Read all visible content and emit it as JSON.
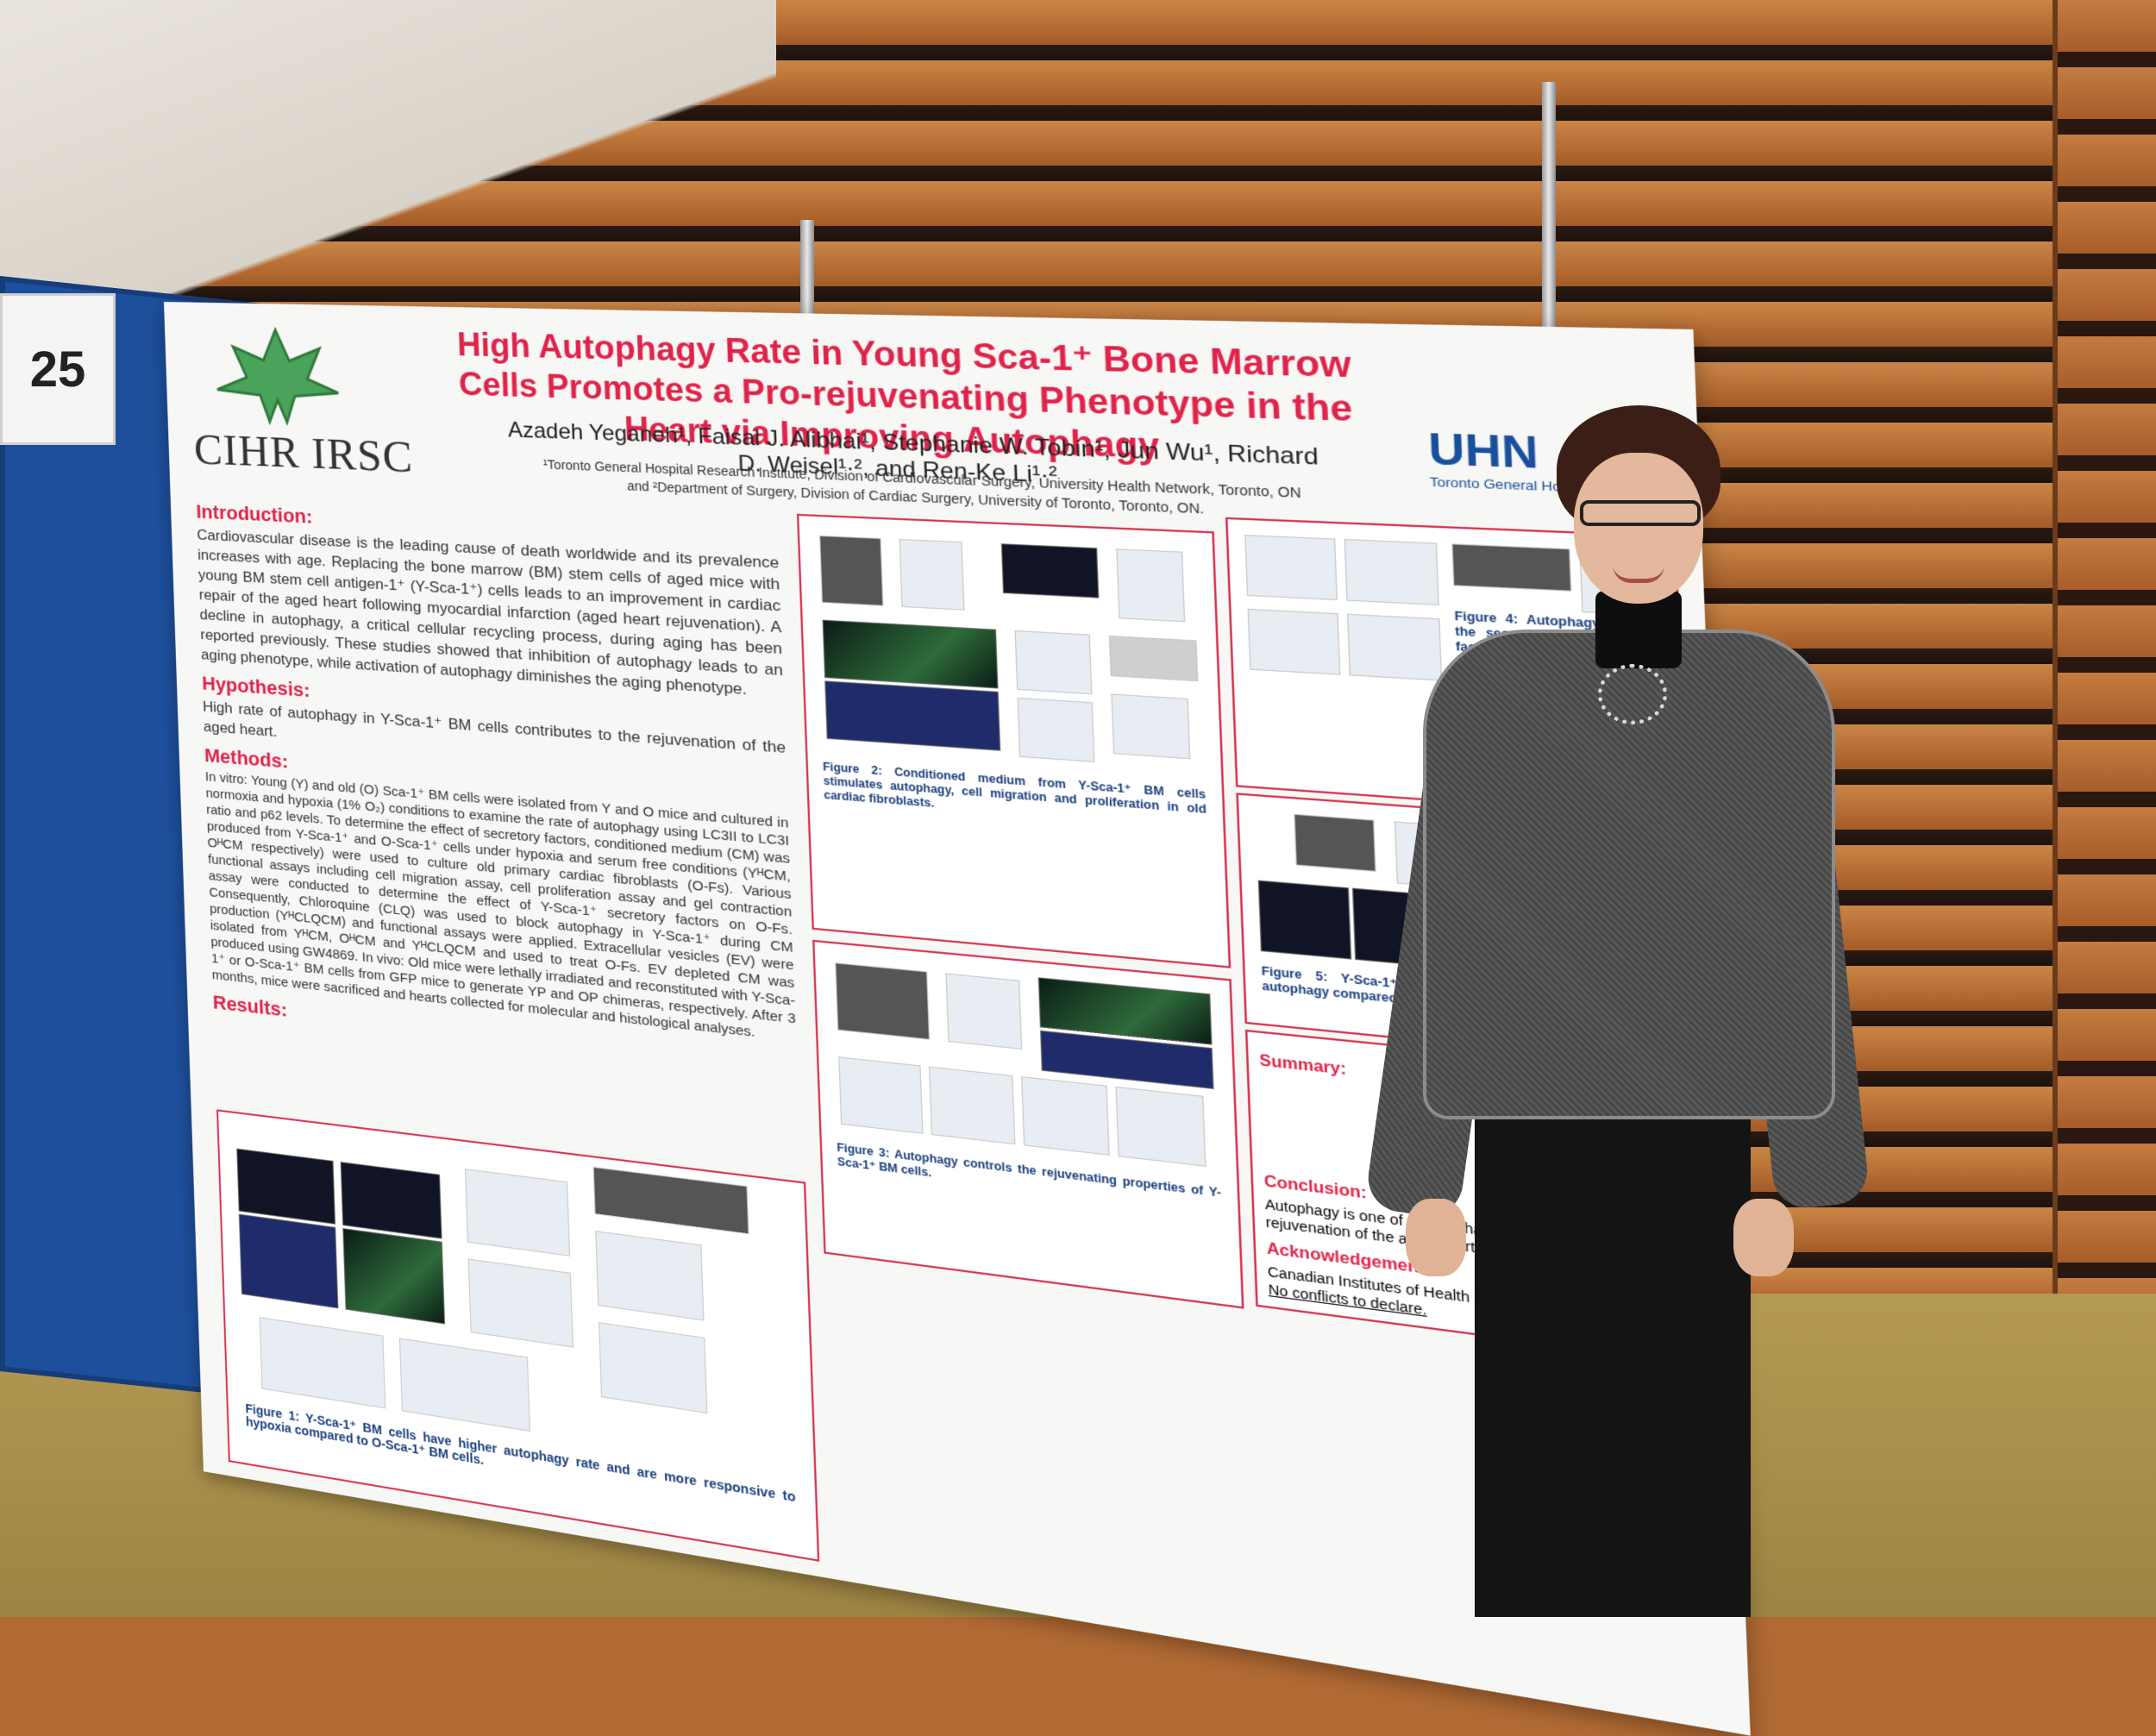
{
  "board": {
    "number": "25"
  },
  "poster": {
    "title": "High Autophagy Rate in Young Sca-1⁺ Bone Marrow Cells Promotes a Pro-rejuvenating Phenotype in the Heart via Improving Autophagy",
    "authors": "Azadeh Yeganeh¹, Faisal J. Alibhai¹, Stephanie W. Tobin¹, Jun Wu¹, Richard D. Weisel¹·², and Ren-Ke Li¹·²",
    "affiliation": "¹Toronto General Hospital Research Institute, Division of Cardiovascular Surgery, University Health Network, Toronto, ON and ²Department of Surgery, Division of Cardiac Surgery, University of Toronto, Toronto, ON.",
    "logos": {
      "left": "CIHR IRSC",
      "right": "UHN",
      "right_sub": "Toronto General Hospital"
    },
    "sections": {
      "introduction": {
        "heading": "Introduction:",
        "body": "Cardiovascular disease is the leading cause of death worldwide and its prevalence increases with age. Replacing the bone marrow (BM) stem cells of aged mice with young BM stem cell antigen-1⁺ (Y-Sca-1⁺) cells leads to an improvement in cardiac repair of the aged heart following myocardial infarction (aged heart rejuvenation). A decline in autophagy, a critical cellular recycling process, during aging has been reported previously. These studies showed that inhibition of autophagy leads to an aging phenotype, while activation of autophagy diminishes the aging phenotype."
      },
      "hypothesis": {
        "heading": "Hypothesis:",
        "body": "High rate of autophagy in Y-Sca-1⁺ BM cells contributes to the rejuvenation of the aged heart."
      },
      "methods": {
        "heading": "Methods:",
        "body": "In vitro: Young (Y) and old (O) Sca-1⁺ BM cells were isolated from Y and O mice and cultured in normoxia and hypoxia (1% O₂) conditions to examine the rate of autophagy using LC3II to LC3I ratio and p62 levels. To determine the effect of secretory factors, conditioned medium (CM) was produced from Y-Sca-1⁺ and O-Sca-1⁺ cells under hypoxia and serum free conditions (YᴴCM, OᴴCM respectively) were used to culture old primary cardiac fibroblasts (O-Fs). Various functional assays including cell migration assay, cell proliferation assay and gel contraction assay were conducted to determine the effect of Y-Sca-1⁺ secretory factors on O-Fs. Consequently, Chloroquine (CLQ) was used to block autophagy in Y-Sca-1⁺ during CM production (YᴴCLQCM) and functional assays were applied. Extracellular vesicles (EV) were isolated from YᴴCM, OᴴCM and YᴴCLQCM and used to treat O-Fs. EV depleted CM was produced using GW4869. In vivo: Old mice were lethally irradiated and reconstituted with Y-Sca-1⁺ or O-Sca-1⁺ BM cells from GFP mice to generate YP and OP chimeras, respectively. After 3 months, mice were sacrificed and hearts collected for molecular and histological analyses."
      },
      "results": {
        "heading": "Results:"
      }
    },
    "figure_captions": {
      "fig1": "Figure 1: Y-Sca-1⁺ BM cells have higher autophagy rate and are more responsive to hypoxia compared to O-Sca-1⁺ BM cells.",
      "fig2": "Figure 2: Conditioned medium from Y-Sca-1⁺ BM cells stimulates autophagy, cell migration and proliferation in old cardiac fibroblasts.",
      "fig3": "Figure 3: Autophagy controls the rejuvenating properties of Y-Sca-1⁺ BM cells.",
      "fig4": "Figure 4: Autophagy controls the secretion of rejuvenating factors from Y-Sca-1⁺ BM cell.",
      "fig5": "Figure 5: Y-Sca-1⁺ reconstituted (YP) heart has higher autophagy compared to O-Sca-1⁺ reconstituted (OP) heart."
    },
    "summary_heading": "Summary:",
    "conclusion_heading": "Conclusion:",
    "conclusion_body": "Autophagy is one of the mechanisms involved in rejuvenation of the aged heart after BM reconstitution.",
    "ack_heading": "Acknowledgements:",
    "ack_body": "Canadian Institutes of Health Research (CIHR)",
    "conflict": "No conflicts to declare."
  },
  "colors": {
    "accent": "#e0234a",
    "board": "#1d4f9c",
    "uhn": "#1a4f9c"
  }
}
